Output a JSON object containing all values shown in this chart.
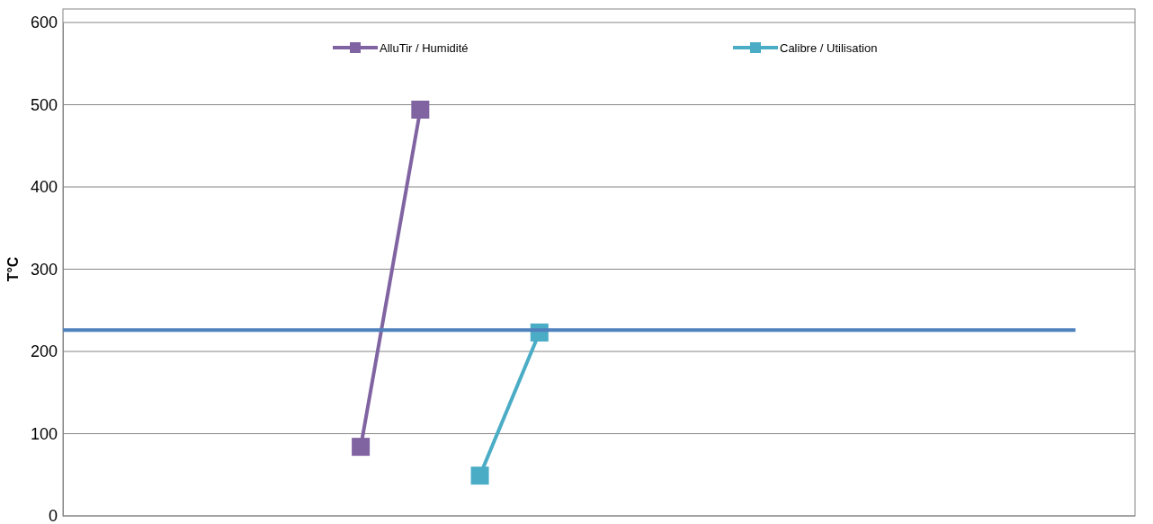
{
  "chart_data": {
    "type": "line",
    "ylabel": "T°C",
    "categories": [
      null,
      null,
      null,
      null,
      null,
      null,
      null,
      null,
      null,
      null,
      null,
      null,
      null,
      null,
      null,
      null,
      null,
      null
    ],
    "ylim": [
      0,
      600
    ],
    "yticks": [
      0,
      100,
      200,
      300,
      400,
      500,
      600
    ],
    "tick_labels": "y",
    "grid": "y",
    "legend": "top",
    "marker": "square",
    "line_style": "solid",
    "series": [
      {
        "name": "AlluTir / Humidité",
        "color": "#8064a2",
        "values": [
          null,
          null,
          null,
          null,
          null,
          84,
          494,
          null,
          null,
          null,
          null,
          null,
          null,
          null,
          null,
          null,
          null,
          null
        ]
      },
      {
        "name": "Calibre / Utilisation",
        "color": "#4bacc6",
        "values": [
          null,
          null,
          null,
          null,
          null,
          null,
          null,
          49,
          223,
          null,
          null,
          null,
          null,
          null,
          null,
          null,
          null,
          null
        ]
      },
      {
        "color": "#4f81bd",
        "marker": "none",
        "values": [
          226,
          226,
          226,
          226,
          226,
          226,
          226,
          226,
          226,
          226,
          226,
          226,
          226,
          226,
          226,
          226,
          226,
          226
        ]
      }
    ]
  }
}
